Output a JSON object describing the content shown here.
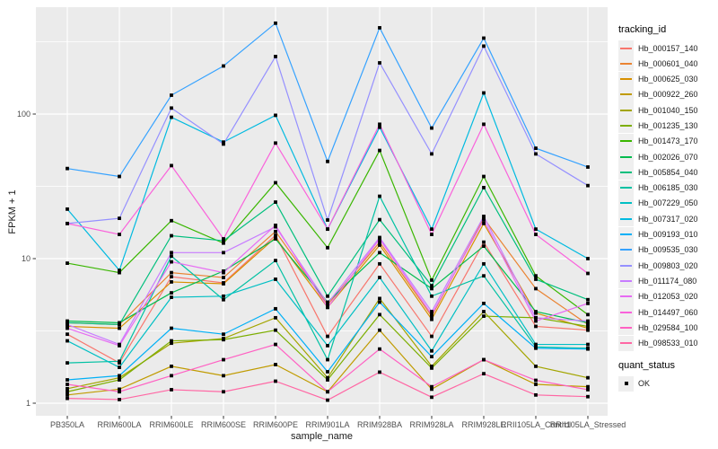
{
  "figure": {
    "y_axis_title": "FPKM + 1",
    "x_axis_title": "sample_name"
  },
  "legend": {
    "tracking_title": "tracking_id",
    "quant_title": "quant_status",
    "quant_items": [
      {
        "label": "OK",
        "marker": "black-square"
      }
    ]
  },
  "chart_data": {
    "type": "line",
    "title": "",
    "xlabel": "sample_name",
    "ylabel": "FPKM + 1",
    "y_scale": "log10",
    "y_ticks": [
      1,
      10,
      100
    ],
    "y_minor_gridlines": [
      3.162,
      31.62,
      316.2
    ],
    "ylim": [
      0.82,
      525
    ],
    "grid": "on",
    "legend_position": "right",
    "point_marker": "black-square",
    "panel_background": "#EBEBEB",
    "gridline_color": "#FFFFFF",
    "tick_label_color": "#4D4D4D",
    "categories": [
      "PB350LA",
      "RRIM600LA",
      "RRIM600LE",
      "RRIM600SE",
      "RRIM600PE",
      "RRIM901LA",
      "RRIM928BA",
      "RRIM928LA",
      "RRIM928LE",
      "RRII105LA_Control",
      "RRII105LA_Stressed"
    ],
    "series": [
      {
        "name": "Hb_000157_140",
        "color": "#F8766D",
        "values": [
          3.0,
          1.9,
          7.5,
          6.8,
          14.5,
          2.9,
          9.2,
          2.9,
          13.0,
          3.4,
          3.2
        ]
      },
      {
        "name": "Hb_000601_040",
        "color": "#EA8331",
        "values": [
          3.6,
          3.5,
          8.0,
          7.4,
          15.4,
          4.8,
          13.0,
          4.0,
          19.0,
          6.2,
          3.5
        ]
      },
      {
        "name": "Hb_000625_030",
        "color": "#D89000",
        "values": [
          3.4,
          3.3,
          6.9,
          6.7,
          14.0,
          4.6,
          12.4,
          3.8,
          17.5,
          4.2,
          3.3
        ]
      },
      {
        "name": "Hb_000922_260",
        "color": "#C09B00",
        "values": [
          1.14,
          1.25,
          1.8,
          1.55,
          1.85,
          1.2,
          3.2,
          1.25,
          2.0,
          1.35,
          1.3
        ]
      },
      {
        "name": "Hb_001040_150",
        "color": "#A3A500",
        "values": [
          1.26,
          1.5,
          2.6,
          2.8,
          3.9,
          1.5,
          5.3,
          1.8,
          4.3,
          1.8,
          1.5
        ]
      },
      {
        "name": "Hb_001235_130",
        "color": "#7CAE00",
        "values": [
          1.2,
          1.45,
          2.7,
          2.75,
          3.2,
          1.45,
          4.1,
          1.75,
          4.0,
          3.9,
          3.4
        ]
      },
      {
        "name": "Hb_001473_170",
        "color": "#39B600",
        "values": [
          9.3,
          8.0,
          18.3,
          12.8,
          33.5,
          11.9,
          56.0,
          7.1,
          37.0,
          7.6,
          4.1
        ]
      },
      {
        "name": "Hb_002026_070",
        "color": "#00BB4E",
        "values": [
          3.7,
          3.6,
          5.8,
          8.2,
          13.7,
          5.0,
          11.0,
          6.2,
          12.2,
          4.3,
          3.6
        ]
      },
      {
        "name": "Hb_005854_040",
        "color": "#00BF7D",
        "values": [
          3.6,
          3.5,
          14.4,
          13.3,
          24.6,
          5.5,
          18.6,
          6.5,
          31.0,
          7.2,
          5.2
        ]
      },
      {
        "name": "Hb_006185_030",
        "color": "#00C1A3",
        "values": [
          1.9,
          1.95,
          10.4,
          5.2,
          9.7,
          2.0,
          27.0,
          5.5,
          7.6,
          2.45,
          2.4
        ]
      },
      {
        "name": "Hb_007229_050",
        "color": "#00BFC4",
        "values": [
          2.7,
          1.77,
          5.4,
          5.5,
          7.2,
          2.5,
          7.4,
          2.3,
          9.2,
          2.55,
          2.55
        ]
      },
      {
        "name": "Hb_007317_020",
        "color": "#00BAE0",
        "values": [
          22.0,
          8.3,
          95.0,
          64.0,
          98.0,
          16.0,
          81.0,
          16.0,
          140.0,
          16.0,
          10.0
        ]
      },
      {
        "name": "Hb_009193_010",
        "color": "#00B0F6",
        "values": [
          1.45,
          1.55,
          3.3,
          3.0,
          4.5,
          1.65,
          5.0,
          2.1,
          4.9,
          2.4,
          2.37
        ]
      },
      {
        "name": "Hb_009535_030",
        "color": "#35A2FF",
        "values": [
          42.0,
          37.0,
          135.0,
          215.0,
          425.0,
          47.0,
          395.0,
          80.0,
          335.0,
          58.0,
          43.0
        ]
      },
      {
        "name": "Hb_009803_020",
        "color": "#9590FF",
        "values": [
          17.5,
          19.0,
          110.0,
          62.0,
          250.0,
          18.5,
          226.0,
          53.0,
          295.0,
          53.0,
          32.0
        ]
      },
      {
        "name": "Hb_011174_080",
        "color": "#C77CFF",
        "values": [
          3.5,
          2.55,
          11.0,
          11.0,
          16.6,
          4.9,
          14.0,
          4.3,
          19.6,
          3.9,
          3.7
        ]
      },
      {
        "name": "Hb_012053_020",
        "color": "#E76BF3",
        "values": [
          3.3,
          2.5,
          9.5,
          8.0,
          17.0,
          4.6,
          13.7,
          4.1,
          18.5,
          3.7,
          4.9
        ]
      },
      {
        "name": "Hb_014497_060",
        "color": "#FA62DB",
        "values": [
          17.5,
          14.7,
          44.0,
          13.7,
          63.0,
          16.0,
          85.0,
          14.7,
          85.0,
          14.7,
          7.9
        ]
      },
      {
        "name": "Hb_029584_100",
        "color": "#FF61C3",
        "values": [
          1.35,
          1.2,
          1.55,
          2.0,
          2.55,
          1.2,
          2.37,
          1.3,
          2.0,
          1.44,
          1.24
        ]
      },
      {
        "name": "Hb_098533_010",
        "color": "#FF67A4",
        "values": [
          1.08,
          1.06,
          1.24,
          1.2,
          1.42,
          1.05,
          1.64,
          1.1,
          1.6,
          1.14,
          1.11
        ]
      }
    ]
  }
}
